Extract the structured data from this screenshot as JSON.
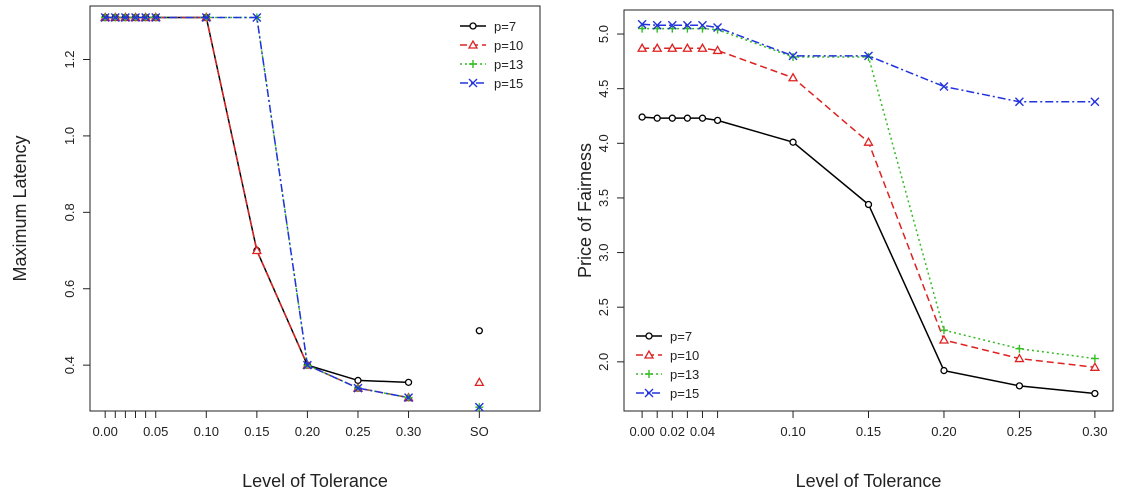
{
  "chart_data": [
    {
      "type": "line",
      "xlabel": "Level of Tolerance",
      "ylabel": "Maximum Latency",
      "x_ticks": [
        {
          "x": 0.0,
          "label": "0.00"
        },
        {
          "x": 0.01,
          "label": ""
        },
        {
          "x": 0.02,
          "label": ""
        },
        {
          "x": 0.03,
          "label": ""
        },
        {
          "x": 0.04,
          "label": ""
        },
        {
          "x": 0.05,
          "label": "0.05"
        },
        {
          "x": 0.1,
          "label": "0.10"
        },
        {
          "x": 0.15,
          "label": "0.15"
        },
        {
          "x": 0.2,
          "label": "0.20"
        },
        {
          "x": 0.25,
          "label": "0.25"
        },
        {
          "x": 0.3,
          "label": "0.30"
        },
        {
          "x": 0.37,
          "label": "SO"
        }
      ],
      "y_ticks": [
        0.4,
        0.6,
        0.8,
        1.0,
        1.2
      ],
      "xlim": [
        -0.015,
        0.43
      ],
      "ylim": [
        0.28,
        1.34
      ],
      "x": [
        0.0,
        0.01,
        0.02,
        0.03,
        0.04,
        0.05,
        0.1,
        0.15,
        0.2,
        0.25,
        0.3
      ],
      "series": [
        {
          "name": "p=7",
          "color": "#000000",
          "marker": "circle",
          "dash": "solid",
          "values": [
            1.31,
            1.31,
            1.31,
            1.31,
            1.31,
            1.31,
            1.31,
            0.7,
            0.4,
            0.36,
            0.355
          ],
          "so": 0.49
        },
        {
          "name": "p=10",
          "color": "#dd2222",
          "marker": "triangle",
          "dash": "dashed",
          "values": [
            1.31,
            1.31,
            1.31,
            1.31,
            1.31,
            1.31,
            1.31,
            0.7,
            0.4,
            0.34,
            0.315
          ],
          "so": 0.355
        },
        {
          "name": "p=13",
          "color": "#33bb22",
          "marker": "plus",
          "dash": "dotted",
          "values": [
            1.31,
            1.31,
            1.31,
            1.31,
            1.31,
            1.31,
            1.31,
            1.31,
            0.4,
            0.34,
            0.315
          ],
          "so": 0.29
        },
        {
          "name": "p=15",
          "color": "#2233dd",
          "marker": "x",
          "dash": "dashdot",
          "values": [
            1.31,
            1.31,
            1.31,
            1.31,
            1.31,
            1.31,
            1.31,
            1.31,
            0.4,
            0.34,
            0.315
          ],
          "so": 0.29
        }
      ],
      "legend": "top-right",
      "grid": false
    },
    {
      "type": "line",
      "xlabel": "Level of Tolerance",
      "ylabel": "Price of Fairness",
      "x_ticks": [
        {
          "x": 0.0,
          "label": "0.00"
        },
        {
          "x": 0.01,
          "label": ""
        },
        {
          "x": 0.02,
          "label": "0.02"
        },
        {
          "x": 0.03,
          "label": ""
        },
        {
          "x": 0.04,
          "label": "0.04"
        },
        {
          "x": 0.05,
          "label": ""
        },
        {
          "x": 0.1,
          "label": "0.10"
        },
        {
          "x": 0.15,
          "label": "0.15"
        },
        {
          "x": 0.2,
          "label": "0.20"
        },
        {
          "x": 0.25,
          "label": "0.25"
        },
        {
          "x": 0.3,
          "label": "0.30"
        }
      ],
      "y_ticks": [
        2.0,
        2.5,
        3.0,
        3.5,
        4.0,
        4.5,
        5.0
      ],
      "xlim": [
        -0.012,
        0.312
      ],
      "ylim": [
        1.55,
        5.22
      ],
      "x": [
        0.0,
        0.01,
        0.02,
        0.03,
        0.04,
        0.05,
        0.1,
        0.15,
        0.2,
        0.25,
        0.3
      ],
      "series": [
        {
          "name": "p=7",
          "color": "#000000",
          "marker": "circle",
          "dash": "solid",
          "values": [
            4.24,
            4.23,
            4.23,
            4.23,
            4.23,
            4.21,
            4.01,
            3.44,
            1.92,
            1.78,
            1.71
          ]
        },
        {
          "name": "p=10",
          "color": "#dd2222",
          "marker": "triangle",
          "dash": "dashed",
          "values": [
            4.87,
            4.87,
            4.87,
            4.87,
            4.87,
            4.85,
            4.6,
            4.01,
            2.2,
            2.03,
            1.95
          ]
        },
        {
          "name": "p=13",
          "color": "#33bb22",
          "marker": "plus",
          "dash": "dotted",
          "values": [
            5.05,
            5.05,
            5.05,
            5.05,
            5.05,
            5.04,
            4.79,
            4.79,
            2.29,
            2.12,
            2.03
          ]
        },
        {
          "name": "p=15",
          "color": "#2233dd",
          "marker": "x",
          "dash": "dashdot",
          "values": [
            5.09,
            5.08,
            5.08,
            5.08,
            5.08,
            5.06,
            4.8,
            4.8,
            4.52,
            4.38,
            4.38
          ]
        }
      ],
      "legend": "bottom-left",
      "grid": false
    }
  ]
}
